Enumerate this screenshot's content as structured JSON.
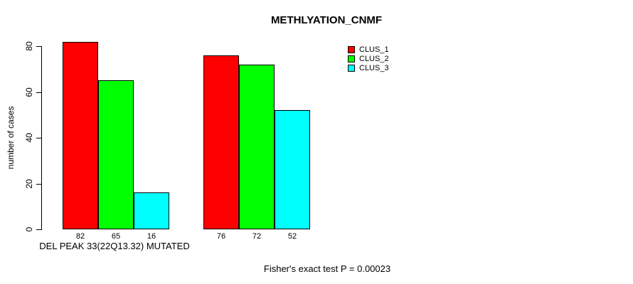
{
  "chart_data": {
    "type": "bar",
    "title": "METHLYATION_CNMF",
    "ylabel": "number of cases",
    "xlabel": "",
    "group_label": "DEL PEAK 33(22Q13.32) MUTATED",
    "annotation": "Fisher's exact test P = 0.00023",
    "yticks": [
      0,
      20,
      40,
      60,
      80
    ],
    "ylim": [
      0,
      86
    ],
    "grid": false,
    "legend_position": "top-right",
    "categories": [
      "DEL PEAK 33(22Q13.32) MUTATED",
      ""
    ],
    "series": [
      {
        "name": "CLUS_1",
        "color": "#ff0000",
        "values": [
          82,
          76
        ]
      },
      {
        "name": "CLUS_2",
        "color": "#00ff00",
        "values": [
          65,
          72
        ]
      },
      {
        "name": "CLUS_3",
        "color": "#00ffff",
        "values": [
          16,
          52
        ]
      }
    ]
  },
  "colors": {
    "background": "#ffffff",
    "axis": "#000000",
    "text": "#000000"
  }
}
